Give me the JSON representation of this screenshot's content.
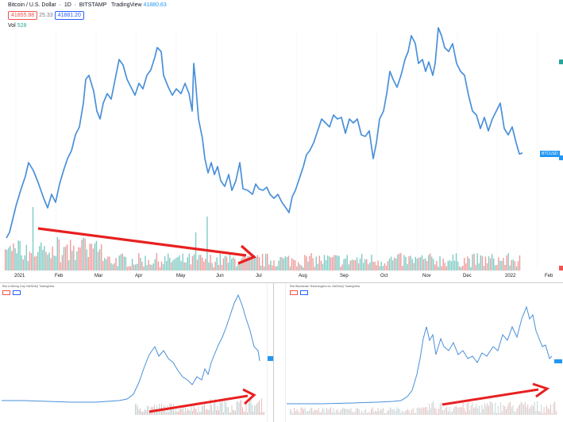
{
  "main": {
    "header": {
      "symbol_title": "Bitcoin / U.S. Dollar",
      "interval": "1D",
      "exchange": "BITSTAMP",
      "source": "TradingView",
      "last_price": "41880.63",
      "sell_price": "41855.88",
      "spread": "25.33",
      "buy_price": "41881.20",
      "vol_label": "Vol",
      "vol_value": "528"
    },
    "price_tag": "BTCUSD",
    "x_labels": [
      "2021",
      "Feb",
      "Mar",
      "Apr",
      "May",
      "Jun",
      "Jul",
      "Aug",
      "Sep",
      "Oct",
      "Nov",
      "Dec",
      "2022",
      "Feb"
    ],
    "colors": {
      "line": "#4a90d9",
      "vol_up": "#80cbc4",
      "vol_down": "#ef9a9a",
      "arrow": "#e82020"
    }
  },
  "sub_left": {
    "header": {
      "symbol_title": "Riot & Mining Corp",
      "exchange": "NASDAQ",
      "source": "TradingView"
    }
  },
  "sub_right": {
    "header": {
      "symbol_title": "Riot Blockchain Technologies Ltd.",
      "exchange": "NASDAQ",
      "source": "TradingView"
    }
  }
}
